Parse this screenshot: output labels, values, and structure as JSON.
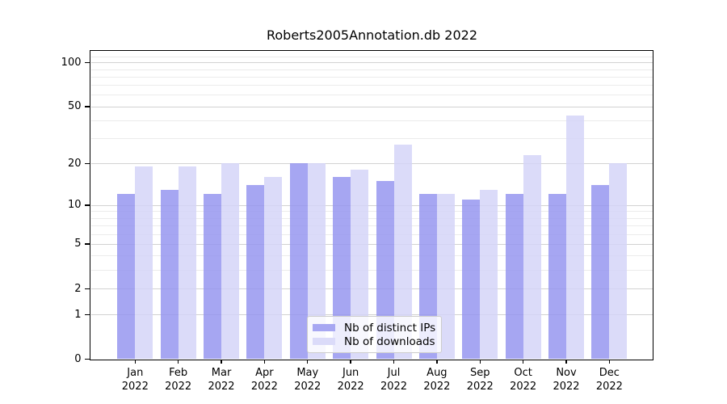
{
  "title": "Roberts2005Annotation.db 2022",
  "chart_data": {
    "type": "bar",
    "title": "Roberts2005Annotation.db 2022",
    "categories": [
      "Jan 2022",
      "Feb 2022",
      "Mar 2022",
      "Apr 2022",
      "May 2022",
      "Jun 2022",
      "Jul 2022",
      "Aug 2022",
      "Sep 2022",
      "Oct 2022",
      "Nov 2022",
      "Dec 2022"
    ],
    "series": [
      {
        "name": "Nb of distinct IPs",
        "color": "#a7a7f2",
        "values": [
          12,
          13,
          12,
          14,
          20,
          16,
          15,
          12,
          11,
          12,
          12,
          14
        ]
      },
      {
        "name": "Nb of downloads",
        "color": "#dbdbf9",
        "values": [
          19,
          19,
          20,
          16,
          20,
          18,
          27,
          12,
          13,
          23,
          43,
          20
        ]
      }
    ],
    "xlabel": "",
    "ylabel": "",
    "y_scale": "log1p",
    "y_ticks_major": [
      0,
      1,
      2,
      5,
      10,
      20,
      50,
      100
    ],
    "y_ticks_minor": [
      3,
      4,
      6,
      7,
      8,
      9,
      30,
      40,
      60,
      70,
      80,
      90,
      110
    ],
    "ylim": [
      0,
      122
    ],
    "grid": true,
    "legend_position": "lower center, inside plot"
  }
}
